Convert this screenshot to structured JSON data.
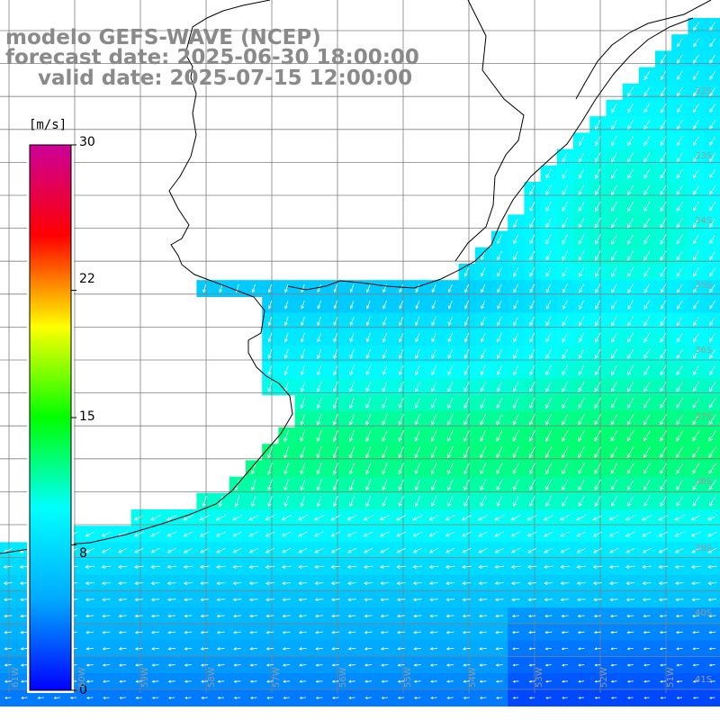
{
  "header": {
    "line1": "modelo GEFS-WAVE (NCEP)",
    "line2": "forecast date: 2025-06-30 18:00:00",
    "line3": "valid date: 2025-07-15 12:00:00"
  },
  "colorbar": {
    "units": "[m/s]",
    "ticks": [
      "30",
      "22",
      "15",
      "8",
      "0"
    ],
    "tick_values": [
      30,
      22,
      15,
      8,
      0
    ],
    "colors": [
      "#0000ff",
      "#00aaff",
      "#00ffff",
      "#00ff00",
      "#ffff00",
      "#ff0000",
      "#cc0099"
    ]
  },
  "grid": {
    "lat_labels": [
      "32S",
      "33S",
      "34S",
      "35S",
      "36S",
      "37S",
      "38S",
      "39S",
      "40S",
      "41S"
    ],
    "lon_labels": [
      "61W",
      "60W",
      "59W",
      "58W",
      "57W",
      "56W",
      "55W",
      "54W",
      "53W",
      "52W",
      "51W"
    ]
  }
}
